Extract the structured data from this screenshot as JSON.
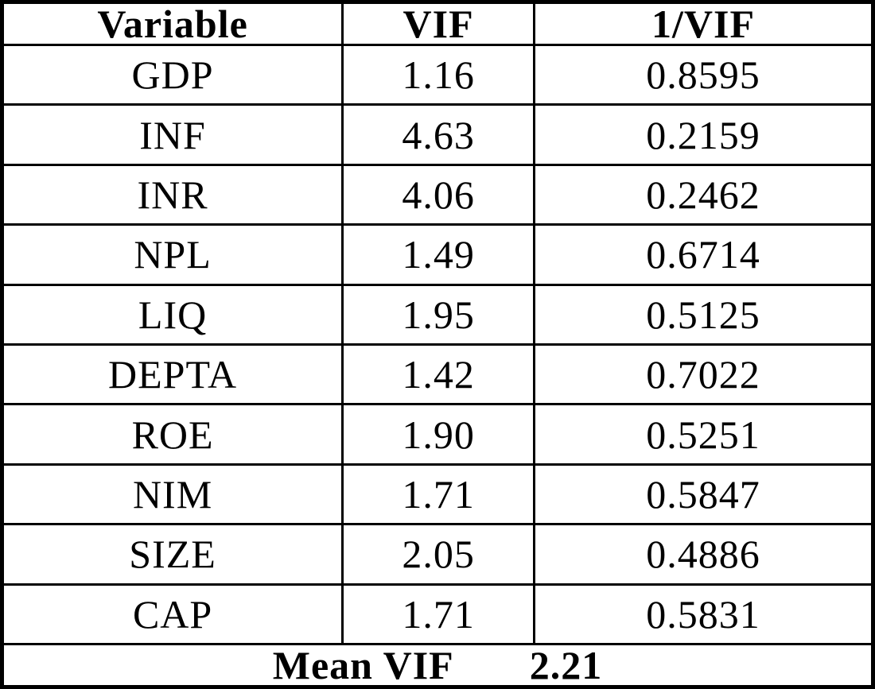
{
  "table": {
    "columns": [
      "Variable",
      "VIF",
      "1/VIF"
    ],
    "rows": [
      [
        "GDP",
        "1.16",
        "0.8595"
      ],
      [
        "INF",
        "4.63",
        "0.2159"
      ],
      [
        "INR",
        "4.06",
        "0.2462"
      ],
      [
        "NPL",
        "1.49",
        "0.6714"
      ],
      [
        "LIQ",
        "1.95",
        "0.5125"
      ],
      [
        "DEPTA",
        "1.42",
        "0.7022"
      ],
      [
        "ROE",
        "1.90",
        "0.5251"
      ],
      [
        "NIM",
        "1.71",
        "0.5847"
      ],
      [
        "SIZE",
        "2.05",
        "0.4886"
      ],
      [
        "CAP",
        "1.71",
        "0.5831"
      ]
    ],
    "footer": {
      "label": "Mean VIF",
      "value": "2.21"
    }
  },
  "colors": {
    "border": "#000000",
    "text": "#000000",
    "background": "#ffffff"
  }
}
